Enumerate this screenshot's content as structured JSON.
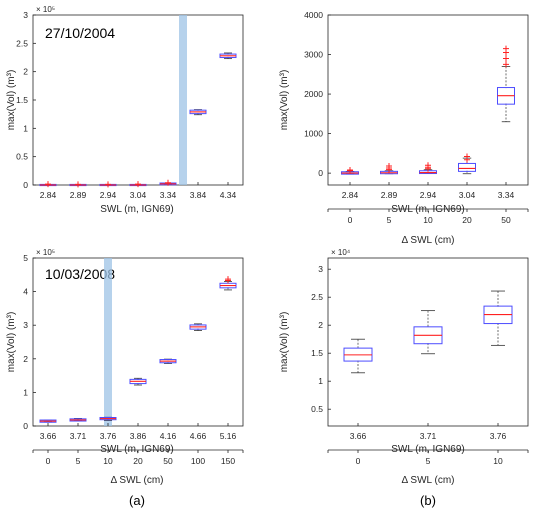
{
  "figure": {
    "labels": {
      "a": "(a)",
      "b": "(b)"
    }
  },
  "chart_data": [
    {
      "type": "box",
      "panel": "top-left",
      "annotation": "27/10/2004",
      "xlabel": "SWL (m, IGN69)",
      "ylabel": "max(Vol) (m³)",
      "ylim": [
        0,
        300000
      ],
      "yticks": [
        0,
        50000,
        100000,
        150000,
        200000,
        250000,
        300000
      ],
      "yticklabels": [
        "0",
        "0.5",
        "1",
        "1.5",
        "2",
        "2.5",
        "3"
      ],
      "yexponent": "× 10⁵",
      "categories": [
        "2.84",
        "2.89",
        "2.94",
        "3.04",
        "3.34",
        "3.84",
        "4.34"
      ],
      "highlight_between": [
        4,
        5
      ],
      "boxes": [
        {
          "med": 0,
          "q1": 0,
          "q3": 0,
          "lo": 0,
          "hi": 0,
          "outliers": [
            1500
          ]
        },
        {
          "med": 0,
          "q1": 0,
          "q3": 0,
          "lo": 0,
          "hi": 0,
          "outliers": [
            1200
          ]
        },
        {
          "med": 0,
          "q1": 0,
          "q3": 0,
          "lo": 0,
          "hi": 0,
          "outliers": [
            1000
          ]
        },
        {
          "med": 0,
          "q1": 0,
          "q3": 0,
          "lo": 0,
          "hi": 0,
          "outliers": [
            1500
          ]
        },
        {
          "med": 2000,
          "q1": 1500,
          "q3": 2500,
          "lo": 1200,
          "hi": 3000,
          "outliers": [
            4000
          ]
        },
        {
          "med": 129000,
          "q1": 127000,
          "q3": 131000,
          "lo": 124000,
          "hi": 133000,
          "outliers": []
        },
        {
          "med": 228000,
          "q1": 226000,
          "q3": 230000,
          "lo": 223000,
          "hi": 233000,
          "outliers": []
        }
      ]
    },
    {
      "type": "box",
      "panel": "top-right",
      "xlabel": "SWL (m, IGN69)",
      "ylabel": "max(Vol) (m³)",
      "ylim": [
        -300,
        4000
      ],
      "yticks": [
        0,
        1000,
        2000,
        3000,
        4000
      ],
      "yticklabels": [
        "0",
        "1000",
        "2000",
        "3000",
        "4000"
      ],
      "categories": [
        "2.84",
        "2.89",
        "2.94",
        "3.04",
        "3.34"
      ],
      "x2label": "Δ SWL (cm)",
      "x2categories": [
        "0",
        "5",
        "10",
        "20",
        "50"
      ],
      "boxes": [
        {
          "med": 3,
          "q1": -10,
          "q3": 20,
          "lo": -25,
          "hi": 45,
          "outliers": [
            60,
            80
          ]
        },
        {
          "med": 10,
          "q1": 0,
          "q3": 30,
          "lo": -15,
          "hi": 60,
          "outliers": [
            90,
            130,
            180
          ]
        },
        {
          "med": 15,
          "q1": 5,
          "q3": 45,
          "lo": -10,
          "hi": 85,
          "outliers": [
            110,
            150,
            200
          ]
        },
        {
          "med": 120,
          "q1": 60,
          "q3": 230,
          "lo": -15,
          "hi": 380,
          "outliers": [
            340,
            420
          ]
        },
        {
          "med": 1960,
          "q1": 1760,
          "q3": 2150,
          "lo": 1300,
          "hi": 2700,
          "outliers": [
            2750,
            2900,
            3050,
            3150
          ]
        }
      ]
    },
    {
      "type": "box",
      "panel": "bottom-left",
      "annotation": "10/03/2008",
      "xlabel": "SWL (m, IGN69)",
      "ylabel": "max(Vol) (m³)",
      "ylim": [
        0,
        500000
      ],
      "yticks": [
        0,
        100000,
        200000,
        300000,
        400000,
        500000
      ],
      "yticklabels": [
        "0",
        "1",
        "2",
        "3",
        "4",
        "5"
      ],
      "yexponent": "× 10⁵",
      "categories": [
        "3.66",
        "3.71",
        "3.76",
        "3.86",
        "4.16",
        "4.66",
        "5.16"
      ],
      "x2label": "Δ SWL (cm)",
      "x2categories": [
        "0",
        "5",
        "10",
        "20",
        "50",
        "100",
        "150"
      ],
      "highlight_at": 2,
      "boxes": [
        {
          "med": 14500,
          "q1": 13000,
          "q3": 16000,
          "lo": 11500,
          "hi": 17500,
          "outliers": []
        },
        {
          "med": 18000,
          "q1": 16500,
          "q3": 19500,
          "lo": 15000,
          "hi": 22500,
          "outliers": []
        },
        {
          "med": 22000,
          "q1": 20500,
          "q3": 23500,
          "lo": 16500,
          "hi": 26000,
          "outliers": []
        },
        {
          "med": 133000,
          "q1": 128000,
          "q3": 137000,
          "lo": 122000,
          "hi": 142000,
          "outliers": []
        },
        {
          "med": 193000,
          "q1": 190000,
          "q3": 196000,
          "lo": 186000,
          "hi": 199000,
          "outliers": []
        },
        {
          "med": 295000,
          "q1": 290000,
          "q3": 299000,
          "lo": 284000,
          "hi": 304000,
          "outliers": []
        },
        {
          "med": 418000,
          "q1": 413000,
          "q3": 423000,
          "lo": 405000,
          "hi": 430000,
          "outliers": [
            433000,
            437000
          ]
        }
      ]
    },
    {
      "type": "box",
      "panel": "bottom-right",
      "xlabel": "SWL (m, IGN69)",
      "ylabel": "max(Vol) (m³)",
      "ylim": [
        2000,
        32000
      ],
      "yticks": [
        5000,
        10000,
        15000,
        20000,
        25000,
        30000
      ],
      "yticklabels": [
        "0.5",
        "1",
        "1.5",
        "2",
        "2.5",
        "3"
      ],
      "yexponent": "× 10⁴",
      "categories": [
        "3.66",
        "3.71",
        "3.76"
      ],
      "x2label": "Δ SWL (cm)",
      "x2categories": [
        "0",
        "5",
        "10"
      ],
      "boxes": [
        {
          "med": 14700,
          "q1": 13700,
          "q3": 15800,
          "lo": 11500,
          "hi": 17500,
          "outliers": []
        },
        {
          "med": 18200,
          "q1": 16800,
          "q3": 19600,
          "lo": 14900,
          "hi": 22600,
          "outliers": []
        },
        {
          "med": 21900,
          "q1": 20400,
          "q3": 23300,
          "lo": 16400,
          "hi": 26100,
          "outliers": []
        }
      ]
    }
  ]
}
